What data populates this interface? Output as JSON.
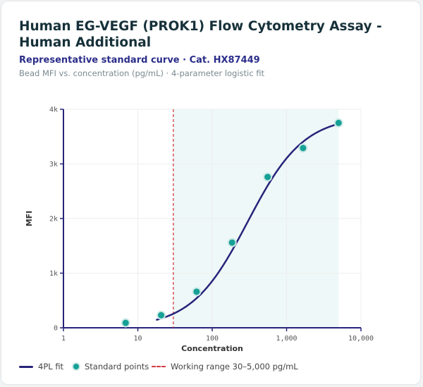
{
  "header": {
    "title": "Human EG-VEGF (PROK1) Flow Cytometry Assay -Human Additional",
    "subtitle": "Representative standard curve · Cat. HX87449",
    "caption": "Bead MFI vs. concentration (pg/mL) · 4-parameter logistic fit"
  },
  "colors": {
    "curve": "#27247a",
    "points": "#16a096",
    "range_line": "#d33d44",
    "range_band": "#eef8f8"
  },
  "chart_data": {
    "type": "scatter",
    "xlabel": "Concentration",
    "ylabel": "MFI",
    "xscale": "log",
    "xlim": [
      1,
      10000
    ],
    "ylim": [
      0,
      4000
    ],
    "x_ticks": [
      "1",
      "10",
      "100",
      "1,000",
      "10,000"
    ],
    "y_ticks": [
      "0",
      "1k",
      "2k",
      "3k",
      "4k"
    ],
    "grid": true,
    "legend_position": "bottom",
    "series": [
      {
        "name": "Standard points",
        "x": [
          6.86,
          20.6,
          61.7,
          185,
          556,
          1667,
          5000
        ],
        "y": [
          90,
          230,
          660,
          1560,
          2760,
          3290,
          3750
        ]
      },
      {
        "name": "4PL fit",
        "fit": {
          "bottom": 0,
          "top": 3880,
          "ec50": 300,
          "hill": 1.15,
          "x_from": 18,
          "x_to": 5000
        }
      }
    ],
    "working_range": {
      "label": "Working range 30–5,000 pg/mL",
      "from": 30,
      "to": 5000
    }
  },
  "legend": {
    "fit": "4PL fit",
    "points": "Standard points",
    "range": "Working range 30–5,000 pg/mL"
  }
}
